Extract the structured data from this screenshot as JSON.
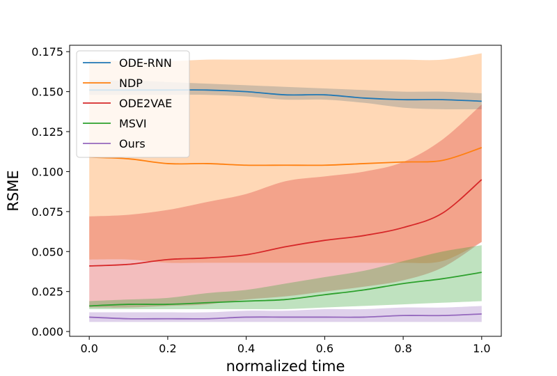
{
  "chart_data": {
    "type": "line",
    "title": "",
    "xlabel": "normalized time",
    "ylabel": "RSME",
    "xlim": [
      -0.05,
      1.05
    ],
    "ylim": [
      -0.003,
      0.179
    ],
    "xticks": [
      0.0,
      0.2,
      0.4,
      0.6,
      0.8,
      1.0
    ],
    "xtick_labels": [
      "0.0",
      "0.2",
      "0.4",
      "0.6",
      "0.8",
      "1.0"
    ],
    "yticks": [
      0.0,
      0.025,
      0.05,
      0.075,
      0.1,
      0.125,
      0.15,
      0.175
    ],
    "ytick_labels": [
      "0.000",
      "0.025",
      "0.050",
      "0.075",
      "0.100",
      "0.125",
      "0.150",
      "0.175"
    ],
    "grid": false,
    "legend_position": "top-left",
    "x": [
      0.0,
      0.1,
      0.2,
      0.3,
      0.4,
      0.5,
      0.6,
      0.7,
      0.8,
      0.9,
      1.0
    ],
    "series": [
      {
        "name": "ODE-RNN",
        "color": "#1f77b4",
        "values": [
          0.151,
          0.151,
          0.151,
          0.151,
          0.15,
          0.148,
          0.148,
          0.146,
          0.145,
          0.145,
          0.144
        ],
        "lower": [
          0.148,
          0.148,
          0.148,
          0.148,
          0.147,
          0.145,
          0.145,
          0.143,
          0.14,
          0.139,
          0.139
        ],
        "upper": [
          0.157,
          0.157,
          0.156,
          0.155,
          0.154,
          0.153,
          0.152,
          0.151,
          0.15,
          0.15,
          0.149
        ]
      },
      {
        "name": "NDP",
        "color": "#ff7f0e",
        "values": [
          0.109,
          0.108,
          0.105,
          0.105,
          0.104,
          0.104,
          0.104,
          0.105,
          0.106,
          0.107,
          0.115
        ],
        "lower": [
          0.045,
          0.045,
          0.043,
          0.043,
          0.043,
          0.043,
          0.043,
          0.043,
          0.043,
          0.044,
          0.056
        ],
        "upper": [
          0.17,
          0.169,
          0.169,
          0.17,
          0.17,
          0.17,
          0.17,
          0.17,
          0.17,
          0.17,
          0.174
        ]
      },
      {
        "name": "ODE2VAE",
        "color": "#d62728",
        "values": [
          0.041,
          0.042,
          0.045,
          0.046,
          0.048,
          0.053,
          0.057,
          0.06,
          0.065,
          0.074,
          0.095
        ],
        "lower": [
          0.015,
          0.015,
          0.016,
          0.017,
          0.02,
          0.022,
          0.025,
          0.028,
          0.032,
          0.04,
          0.056
        ],
        "upper": [
          0.072,
          0.073,
          0.076,
          0.081,
          0.086,
          0.094,
          0.097,
          0.1,
          0.106,
          0.12,
          0.142
        ]
      },
      {
        "name": "MSVI",
        "color": "#2ca02c",
        "values": [
          0.016,
          0.017,
          0.017,
          0.018,
          0.019,
          0.02,
          0.023,
          0.026,
          0.03,
          0.033,
          0.037
        ],
        "lower": [
          0.014,
          0.014,
          0.014,
          0.014,
          0.014,
          0.014,
          0.015,
          0.016,
          0.017,
          0.018,
          0.019
        ],
        "upper": [
          0.019,
          0.02,
          0.021,
          0.024,
          0.026,
          0.03,
          0.034,
          0.038,
          0.044,
          0.05,
          0.054
        ]
      },
      {
        "name": "Ours",
        "color": "#9467bd",
        "values": [
          0.009,
          0.008,
          0.008,
          0.008,
          0.009,
          0.009,
          0.009,
          0.009,
          0.01,
          0.01,
          0.011
        ],
        "lower": [
          0.006,
          0.006,
          0.006,
          0.006,
          0.006,
          0.006,
          0.006,
          0.006,
          0.006,
          0.006,
          0.006
        ],
        "upper": [
          0.012,
          0.012,
          0.012,
          0.012,
          0.013,
          0.013,
          0.014,
          0.014,
          0.015,
          0.015,
          0.016
        ]
      }
    ]
  }
}
